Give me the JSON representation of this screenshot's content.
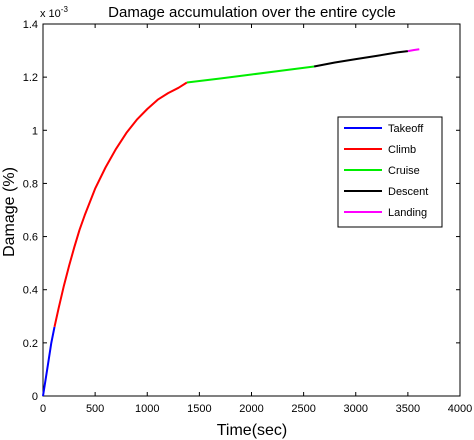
{
  "chart_data": {
    "type": "line",
    "title": "Damage accumulation over the entire cycle",
    "xlabel": "Time(sec)",
    "ylabel": "Damage (%)",
    "y_multiplier_base": "x 10",
    "y_multiplier_exp": "-3",
    "xlim": [
      0,
      4000
    ],
    "ylim": [
      0,
      1.4
    ],
    "xticks": [
      "0",
      "500",
      "1000",
      "1500",
      "2000",
      "2500",
      "3000",
      "3500",
      "4000"
    ],
    "yticks": [
      "0",
      "0.2",
      "0.4",
      "0.6",
      "0.8",
      "1",
      "1.2",
      "1.4"
    ],
    "grid": false,
    "legend_position": "right",
    "series": [
      {
        "name": "Takeoff",
        "color": "#0000ff",
        "x": [
          0,
          40,
          80,
          110
        ],
        "y": [
          0,
          0.1,
          0.2,
          0.26
        ]
      },
      {
        "name": "Climb",
        "color": "#ff0000",
        "x": [
          110,
          150,
          200,
          250,
          300,
          350,
          400,
          450,
          500,
          600,
          700,
          800,
          900,
          1000,
          1100,
          1200,
          1300,
          1380
        ],
        "y": [
          0.26,
          0.33,
          0.415,
          0.49,
          0.56,
          0.625,
          0.68,
          0.73,
          0.78,
          0.86,
          0.93,
          0.99,
          1.04,
          1.08,
          1.115,
          1.14,
          1.16,
          1.18
        ]
      },
      {
        "name": "Cruise",
        "color": "#00ee00",
        "x": [
          1380,
          1700,
          2000,
          2300,
          2600
        ],
        "y": [
          1.18,
          1.195,
          1.21,
          1.225,
          1.24
        ]
      },
      {
        "name": "Descent",
        "color": "#000000",
        "x": [
          2600,
          2800,
          3000,
          3200,
          3400,
          3500
        ],
        "y": [
          1.24,
          1.255,
          1.268,
          1.28,
          1.293,
          1.298
        ]
      },
      {
        "name": "Landing",
        "color": "#ff00ff",
        "x": [
          3500,
          3560,
          3610
        ],
        "y": [
          1.298,
          1.302,
          1.305
        ]
      }
    ]
  }
}
